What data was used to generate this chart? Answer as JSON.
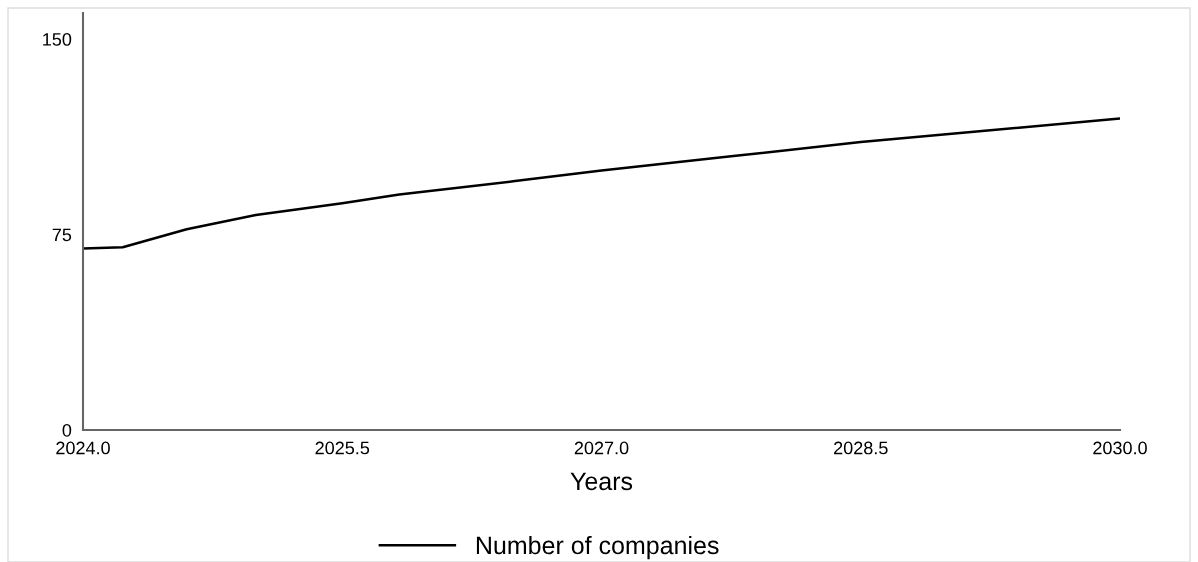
{
  "chart_data": {
    "type": "line",
    "xlabel": "Years",
    "x": [
      2024.0,
      2024.23,
      2024.6,
      2025.0,
      2025.5,
      2025.83,
      2026.5,
      2027.0,
      2027.75,
      2028.5,
      2029.25,
      2029.92,
      2030.0
    ],
    "series": [
      {
        "name": "Number of companies",
        "color": "#000000",
        "values": [
          69.6,
          70.1,
          77,
          82.5,
          87,
          90.4,
          95.5,
          99.6,
          105,
          110.5,
          115,
          119,
          119.5
        ]
      }
    ],
    "xlim": [
      2024.0,
      2030.0
    ],
    "xticks": [
      {
        "value": 2024.0,
        "label": "2024.0"
      },
      {
        "value": 2025.5,
        "label": "2025.5"
      },
      {
        "value": 2027.0,
        "label": "2027.0"
      },
      {
        "value": 2028.5,
        "label": "2028.5"
      },
      {
        "value": 2030.0,
        "label": "2030.0"
      }
    ],
    "ylim": [
      0,
      160
    ],
    "yticks": [
      0,
      75,
      150
    ],
    "grid": false,
    "legend": "bottom",
    "marker": "none",
    "line_style": "solid"
  }
}
